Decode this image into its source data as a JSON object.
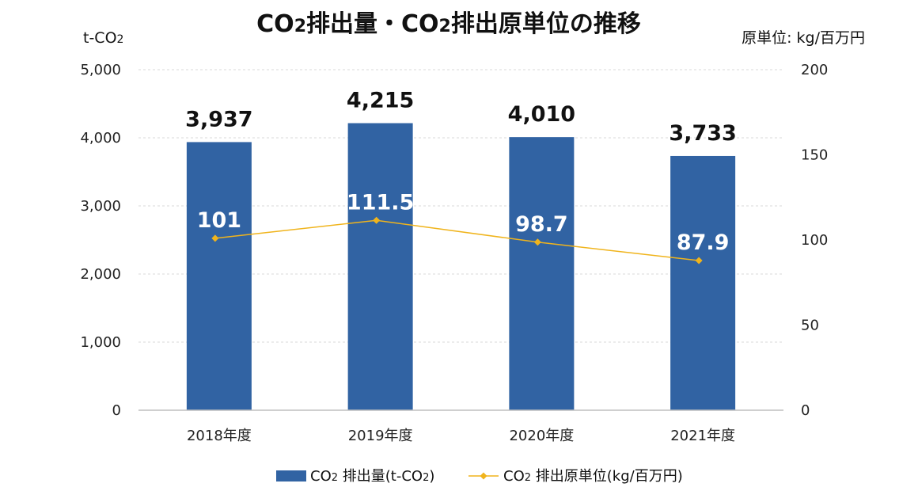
{
  "chart_data": {
    "type": "bar",
    "title_parts": [
      "CO",
      "2",
      "排出量・CO",
      "2",
      "排出原単位の推移"
    ],
    "y_left_label_parts": [
      "t-CO",
      "2"
    ],
    "y_right_label": "原単位: kg/百万円",
    "categories": [
      "2018年度",
      "2019年度",
      "2020年度",
      "2021年度"
    ],
    "ylim_left": [
      0,
      5000
    ],
    "ylim_right": [
      0,
      200
    ],
    "y_left_ticks": [
      0,
      1000,
      2000,
      3000,
      4000,
      5000
    ],
    "y_left_tick_labels": [
      "0",
      "1,000",
      "2,000",
      "3,000",
      "4,000",
      "5,000"
    ],
    "y_right_ticks": [
      0,
      50,
      100,
      150,
      200
    ],
    "y_right_tick_labels": [
      "0",
      "50",
      "100",
      "150",
      "200"
    ],
    "grid": true,
    "legend_position": "bottom",
    "series": [
      {
        "name_parts": [
          "CO",
          "2",
          " 排出量(t-CO",
          "2",
          ")"
        ],
        "type": "bar",
        "axis": "left",
        "color": "#3163a3",
        "values": [
          3937,
          4215,
          4010,
          3733
        ],
        "labels": [
          "3,937",
          "4,215",
          "4,010",
          "3,733"
        ]
      },
      {
        "name_parts": [
          "CO",
          "2",
          " 排出原単位(kg/百万円)"
        ],
        "type": "line",
        "axis": "right",
        "color": "#f0b41c",
        "values": [
          101,
          111.5,
          98.7,
          87.9
        ],
        "labels": [
          "101",
          "111.5",
          "98.7",
          "87.9"
        ]
      }
    ]
  }
}
